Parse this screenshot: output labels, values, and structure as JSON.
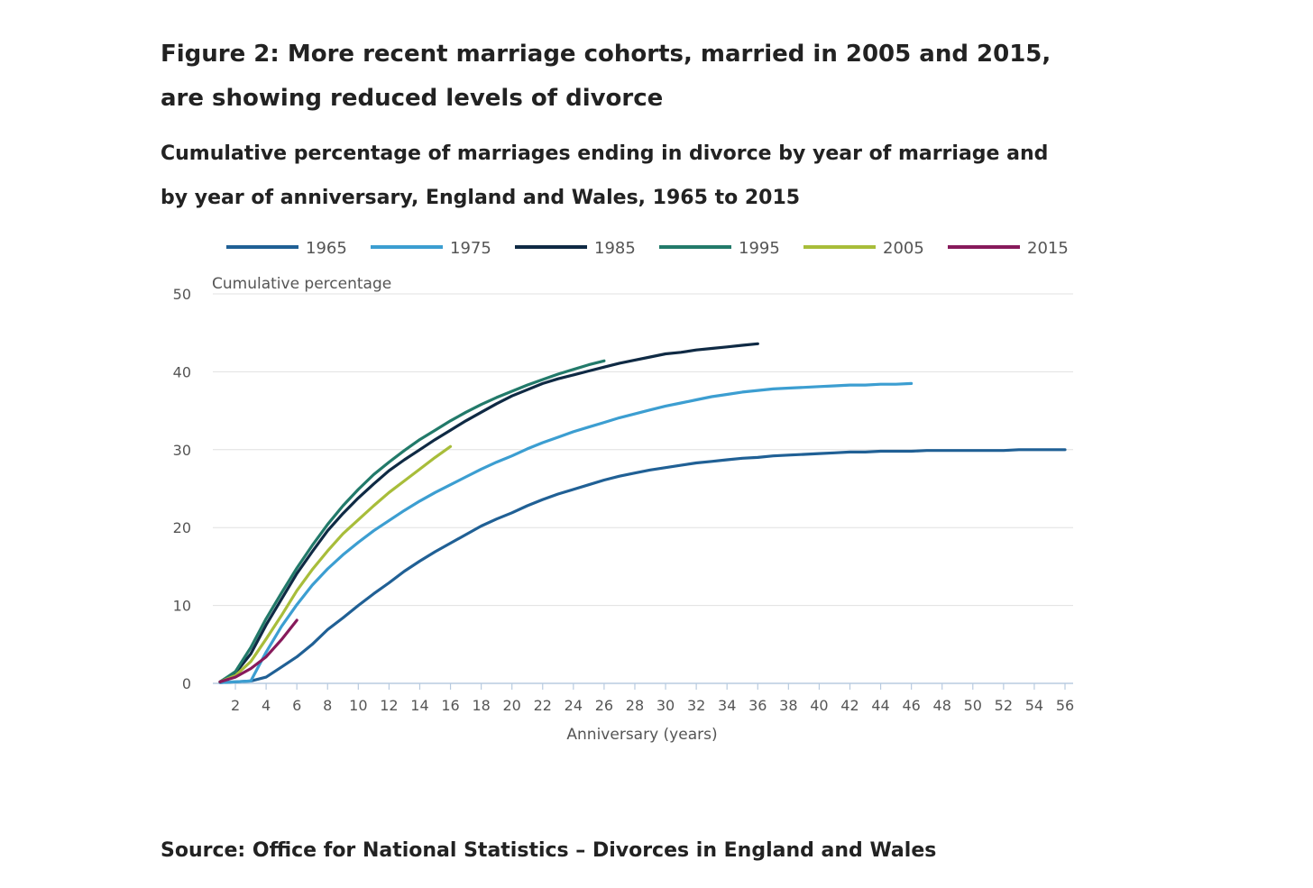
{
  "figure": {
    "title": "Figure 2: More recent marriage cohorts, married in 2005 and 2015, are showing reduced levels of divorce",
    "subtitle": "Cumulative percentage of marriages ending in divorce by year of marriage and by year of anniversary, England and Wales, 1965 to 2015",
    "source": "Source: Office for National Statistics – Divorces in England and Wales"
  },
  "chart_data": {
    "type": "line",
    "title": "Cumulative percentage of marriages ending in divorce by year of marriage and by year of anniversary, England and Wales, 1965 to 2015",
    "xlabel": "Anniversary (years)",
    "ylabel": "Cumulative percentage",
    "xlim": [
      1,
      56
    ],
    "ylim": [
      0,
      50
    ],
    "x_ticks": [
      2,
      4,
      6,
      8,
      10,
      12,
      14,
      16,
      18,
      20,
      22,
      24,
      26,
      28,
      30,
      32,
      34,
      36,
      38,
      40,
      42,
      44,
      46,
      48,
      50,
      52,
      54,
      56
    ],
    "y_ticks": [
      0,
      10,
      20,
      30,
      40,
      50
    ],
    "grid": "horizontal",
    "legend_position": "top",
    "series": [
      {
        "name": "1965",
        "color": "#206095",
        "x": [
          1,
          2,
          3,
          4,
          5,
          6,
          7,
          8,
          9,
          10,
          11,
          12,
          13,
          14,
          15,
          16,
          17,
          18,
          19,
          20,
          21,
          22,
          23,
          24,
          25,
          26,
          27,
          28,
          29,
          30,
          31,
          32,
          33,
          34,
          35,
          36,
          37,
          38,
          39,
          40,
          41,
          42,
          43,
          44,
          45,
          46,
          47,
          48,
          49,
          50,
          51,
          52,
          53,
          54,
          55,
          56
        ],
        "y": [
          0.1,
          0.2,
          0.3,
          0.8,
          2.1,
          3.4,
          5.0,
          6.9,
          8.4,
          10.0,
          11.5,
          12.9,
          14.4,
          15.7,
          16.9,
          18.0,
          19.1,
          20.2,
          21.1,
          21.9,
          22.8,
          23.6,
          24.3,
          24.9,
          25.5,
          26.1,
          26.6,
          27.0,
          27.4,
          27.7,
          28.0,
          28.3,
          28.5,
          28.7,
          28.9,
          29.0,
          29.2,
          29.3,
          29.4,
          29.5,
          29.6,
          29.7,
          29.7,
          29.8,
          29.8,
          29.8,
          29.9,
          29.9,
          29.9,
          29.9,
          29.9,
          29.9,
          30.0,
          30.0,
          30.0,
          30.0
        ]
      },
      {
        "name": "1975",
        "color": "#3c9ed1",
        "x": [
          1,
          2,
          3,
          4,
          5,
          6,
          7,
          8,
          9,
          10,
          11,
          12,
          13,
          14,
          15,
          16,
          17,
          18,
          19,
          20,
          21,
          22,
          23,
          24,
          25,
          26,
          27,
          28,
          29,
          30,
          31,
          32,
          33,
          34,
          35,
          36,
          37,
          38,
          39,
          40,
          41,
          42,
          43,
          44,
          45,
          46
        ],
        "y": [
          0.1,
          0.2,
          0.3,
          4.0,
          7.3,
          10.1,
          12.6,
          14.7,
          16.5,
          18.1,
          19.6,
          20.9,
          22.2,
          23.4,
          24.5,
          25.5,
          26.5,
          27.5,
          28.4,
          29.2,
          30.1,
          30.9,
          31.6,
          32.3,
          32.9,
          33.5,
          34.1,
          34.6,
          35.1,
          35.6,
          36.0,
          36.4,
          36.8,
          37.1,
          37.4,
          37.6,
          37.8,
          37.9,
          38.0,
          38.1,
          38.2,
          38.3,
          38.3,
          38.4,
          38.4,
          38.5
        ]
      },
      {
        "name": "1985",
        "color": "#0f2a44",
        "x": [
          1,
          2,
          3,
          4,
          5,
          6,
          7,
          8,
          9,
          10,
          11,
          12,
          13,
          14,
          15,
          16,
          17,
          18,
          19,
          20,
          21,
          22,
          23,
          24,
          25,
          26,
          27,
          28,
          29,
          30,
          31,
          32,
          33,
          34,
          35,
          36
        ],
        "y": [
          0.2,
          1.3,
          3.8,
          7.5,
          10.8,
          14.1,
          16.9,
          19.6,
          21.8,
          23.8,
          25.6,
          27.3,
          28.7,
          30.0,
          31.3,
          32.5,
          33.7,
          34.8,
          35.9,
          36.9,
          37.7,
          38.5,
          39.1,
          39.6,
          40.1,
          40.6,
          41.1,
          41.5,
          41.9,
          42.3,
          42.5,
          42.8,
          43.0,
          43.2,
          43.4,
          43.6
        ]
      },
      {
        "name": "1995",
        "color": "#227a6a",
        "x": [
          1,
          2,
          3,
          4,
          5,
          6,
          7,
          8,
          9,
          10,
          11,
          12,
          13,
          14,
          15,
          16,
          17,
          18,
          19,
          20,
          21,
          22,
          23,
          24,
          25,
          26
        ],
        "y": [
          0.2,
          1.5,
          4.6,
          8.3,
          11.6,
          14.8,
          17.7,
          20.4,
          22.8,
          24.9,
          26.8,
          28.4,
          29.9,
          31.3,
          32.5,
          33.7,
          34.8,
          35.8,
          36.7,
          37.5,
          38.3,
          39.0,
          39.7,
          40.3,
          40.9,
          41.4
        ]
      },
      {
        "name": "2005",
        "color": "#a8bd3a",
        "x": [
          1,
          2,
          3,
          4,
          5,
          6,
          7,
          8,
          9,
          10,
          11,
          12,
          13,
          14,
          15,
          16
        ],
        "y": [
          0.2,
          1.0,
          2.8,
          5.7,
          8.7,
          11.9,
          14.6,
          17.0,
          19.2,
          21.0,
          22.8,
          24.5,
          26.0,
          27.5,
          29.0,
          30.4
        ]
      },
      {
        "name": "2015",
        "color": "#871a5b",
        "x": [
          1,
          2,
          3,
          4,
          5,
          6
        ],
        "y": [
          0.2,
          0.8,
          1.9,
          3.4,
          5.6,
          8.1
        ]
      }
    ]
  }
}
